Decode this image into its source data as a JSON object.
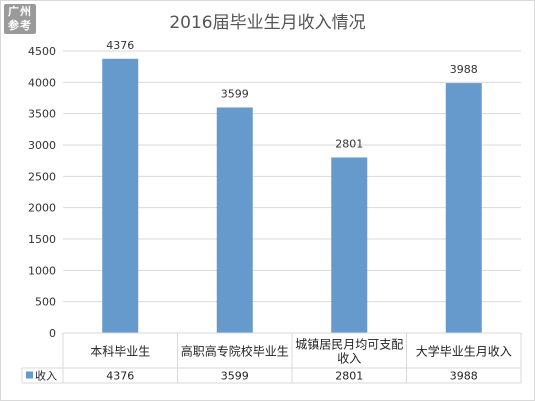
{
  "watermark": {
    "line1": "广州",
    "line2": "参考"
  },
  "chart_data": {
    "type": "bar",
    "title": "2016届毕业生月收入情况",
    "categories": [
      "本科毕业生",
      "高职高专院校毕业生",
      "城镇居民月均可支配收入",
      "大学毕业生月收入"
    ],
    "category_lines": [
      [
        "本科毕业生"
      ],
      [
        "高职高专院校毕业生"
      ],
      [
        "城镇居民月均可支配",
        "收入"
      ],
      [
        "大学毕业生月收入"
      ]
    ],
    "series": [
      {
        "name": "收入",
        "values": [
          4376,
          3599,
          2801,
          3988
        ]
      }
    ],
    "ylim": [
      0,
      4500
    ],
    "ytick_step": 500,
    "grid": true,
    "data_table": true,
    "colors": {
      "bar": "#6699cc",
      "grid": "#d9d9d9"
    }
  }
}
